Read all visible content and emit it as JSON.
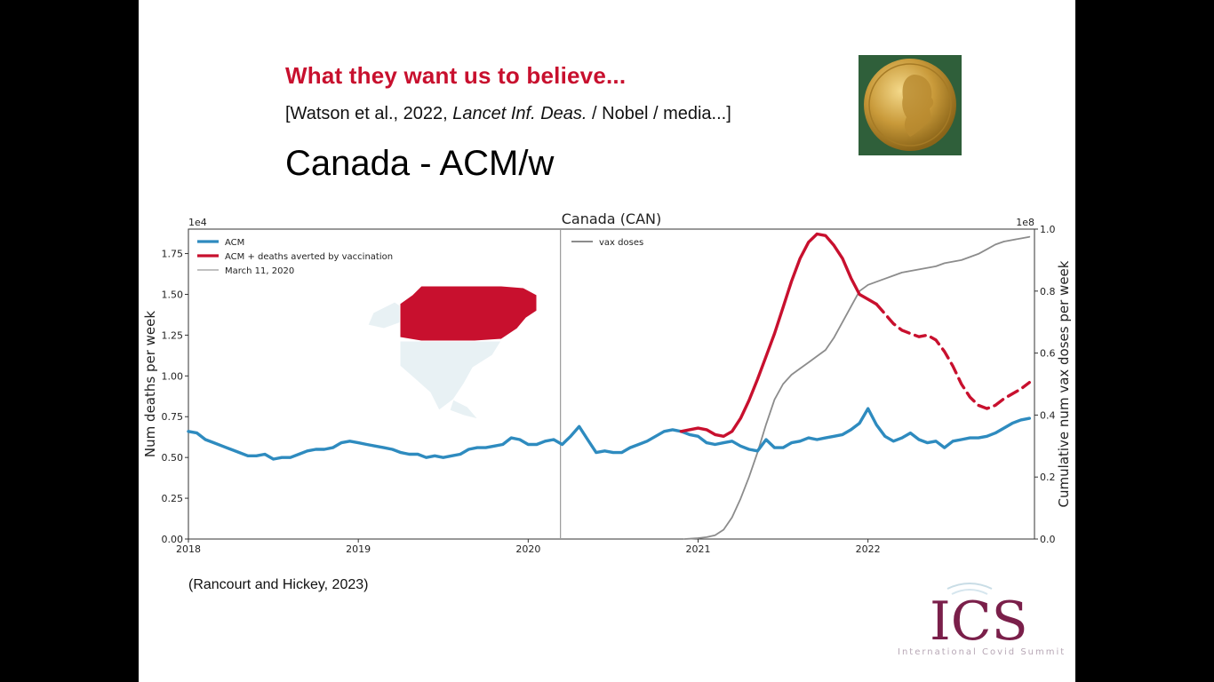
{
  "slide": {
    "headline": "What they want us to believe...",
    "citation_prefix": "[Watson et al., 2022, ",
    "citation_journal": "Lancet Inf. Deas.",
    "citation_suffix": " / Nobel / media...]",
    "big_title": "Canada  -  ACM/w",
    "source": "(Rancourt and Hickey, 2023)",
    "logo_text": "ICS",
    "logo_subtitle": "International Covid Summit"
  },
  "colors": {
    "acm": "#2e8bbf",
    "averted": "#c8102e",
    "vax": "#8c8c8c",
    "marker": "#9a9a9a",
    "logo": "#7a1f4a"
  },
  "chart_data": {
    "type": "line",
    "title": "Canada (CAN)",
    "ylabel": "Num deaths per week",
    "y2label": "Cumulative num vax doses per week",
    "y_scale_label": "1e4",
    "y2_scale_label": "1e8",
    "xlim": [
      2018.0,
      2022.98
    ],
    "ylim": [
      0,
      1.9
    ],
    "y2lim": [
      0,
      1.0
    ],
    "x_ticks": [
      {
        "value": 2018,
        "label": "2018"
      },
      {
        "value": 2019,
        "label": "2019"
      },
      {
        "value": 2020,
        "label": "2020"
      },
      {
        "value": 2021,
        "label": "2021"
      },
      {
        "value": 2022,
        "label": "2022"
      }
    ],
    "y_ticks": [
      {
        "value": 0.0,
        "label": "0.00"
      },
      {
        "value": 0.25,
        "label": "0.25"
      },
      {
        "value": 0.5,
        "label": "0.50"
      },
      {
        "value": 0.75,
        "label": "0.75"
      },
      {
        "value": 1.0,
        "label": "1.00"
      },
      {
        "value": 1.25,
        "label": "1.25"
      },
      {
        "value": 1.5,
        "label": "1.50"
      },
      {
        "value": 1.75,
        "label": "1.75"
      }
    ],
    "y2_ticks": [
      {
        "value": 0.0,
        "label": "0.0"
      },
      {
        "value": 0.2,
        "label": "0.2"
      },
      {
        "value": 0.4,
        "label": "0.4"
      },
      {
        "value": 0.6,
        "label": "0.6"
      },
      {
        "value": 0.8,
        "label": "0.8"
      },
      {
        "value": 1.0,
        "label": "1.0"
      }
    ],
    "legend_left": [
      {
        "label": "ACM",
        "color": "#2e8bbf",
        "style": "thick"
      },
      {
        "label": "ACM + deaths averted by vaccination",
        "color": "#c8102e",
        "style": "thick"
      },
      {
        "label": "March 11, 2020",
        "color": "#9a9a9a",
        "style": "thin"
      }
    ],
    "legend_right": [
      {
        "label": "vax doses",
        "color": "#8c8c8c",
        "style": "thin"
      }
    ],
    "marker_x": 2020.19,
    "series": [
      {
        "name": "ACM",
        "axis": "left",
        "x": [
          2018.0,
          2018.05,
          2018.1,
          2018.15,
          2018.2,
          2018.25,
          2018.3,
          2018.35,
          2018.4,
          2018.45,
          2018.5,
          2018.55,
          2018.6,
          2018.65,
          2018.7,
          2018.75,
          2018.8,
          2018.85,
          2018.9,
          2018.95,
          2019.0,
          2019.05,
          2019.1,
          2019.15,
          2019.2,
          2019.25,
          2019.3,
          2019.35,
          2019.4,
          2019.45,
          2019.5,
          2019.55,
          2019.6,
          2019.65,
          2019.7,
          2019.75,
          2019.8,
          2019.85,
          2019.9,
          2019.95,
          2020.0,
          2020.05,
          2020.1,
          2020.15,
          2020.2,
          2020.25,
          2020.3,
          2020.35,
          2020.4,
          2020.45,
          2020.5,
          2020.55,
          2020.6,
          2020.65,
          2020.7,
          2020.75,
          2020.8,
          2020.85,
          2020.9,
          2020.95,
          2021.0,
          2021.05,
          2021.1,
          2021.15,
          2021.2,
          2021.25,
          2021.3,
          2021.35,
          2021.4,
          2021.45,
          2021.5,
          2021.55,
          2021.6,
          2021.65,
          2021.7,
          2021.75,
          2021.8,
          2021.85,
          2021.9,
          2021.95,
          2022.0,
          2022.05,
          2022.1,
          2022.15,
          2022.2,
          2022.25,
          2022.3,
          2022.35,
          2022.4,
          2022.45,
          2022.5,
          2022.55,
          2022.6,
          2022.65,
          2022.7,
          2022.75,
          2022.8,
          2022.85,
          2022.9,
          2022.95
        ],
        "values": [
          0.66,
          0.65,
          0.61,
          0.59,
          0.57,
          0.55,
          0.53,
          0.51,
          0.51,
          0.52,
          0.49,
          0.5,
          0.5,
          0.52,
          0.54,
          0.55,
          0.55,
          0.56,
          0.59,
          0.6,
          0.59,
          0.58,
          0.57,
          0.56,
          0.55,
          0.53,
          0.52,
          0.52,
          0.5,
          0.51,
          0.5,
          0.51,
          0.52,
          0.55,
          0.56,
          0.56,
          0.57,
          0.58,
          0.62,
          0.61,
          0.58,
          0.58,
          0.6,
          0.61,
          0.58,
          0.63,
          0.69,
          0.61,
          0.53,
          0.54,
          0.53,
          0.53,
          0.56,
          0.58,
          0.6,
          0.63,
          0.66,
          0.67,
          0.66,
          0.64,
          0.63,
          0.59,
          0.58,
          0.59,
          0.6,
          0.57,
          0.55,
          0.54,
          0.61,
          0.56,
          0.56,
          0.59,
          0.6,
          0.62,
          0.61,
          0.62,
          0.63,
          0.64,
          0.67,
          0.71,
          0.8,
          0.7,
          0.63,
          0.6,
          0.62,
          0.65,
          0.61,
          0.59,
          0.6,
          0.56,
          0.6,
          0.61,
          0.62,
          0.62,
          0.63,
          0.65,
          0.68,
          0.71,
          0.73,
          0.74
        ]
      },
      {
        "name": "ACM + deaths averted by vaccination",
        "axis": "left",
        "x": [
          2020.9,
          2020.95,
          2021.0,
          2021.05,
          2021.1,
          2021.15,
          2021.2,
          2021.25,
          2021.3,
          2021.35,
          2021.4,
          2021.45,
          2021.5,
          2021.55,
          2021.6,
          2021.65,
          2021.7,
          2021.75,
          2021.8,
          2021.85,
          2021.9,
          2021.95,
          2022.0,
          2022.05
        ],
        "values": [
          0.66,
          0.67,
          0.68,
          0.67,
          0.64,
          0.63,
          0.66,
          0.74,
          0.85,
          0.98,
          1.12,
          1.26,
          1.42,
          1.58,
          1.72,
          1.82,
          1.87,
          1.86,
          1.8,
          1.72,
          1.6,
          1.5,
          1.47,
          1.44
        ]
      },
      {
        "name": "ACM + deaths averted by vaccination (dashed)",
        "axis": "left",
        "x": [
          2022.05,
          2022.1,
          2022.15,
          2022.2,
          2022.25,
          2022.3,
          2022.35,
          2022.4,
          2022.45,
          2022.5,
          2022.55,
          2022.6,
          2022.65,
          2022.7,
          2022.75,
          2022.8,
          2022.85,
          2022.9,
          2022.95
        ],
        "values": [
          1.44,
          1.38,
          1.32,
          1.28,
          1.26,
          1.24,
          1.25,
          1.22,
          1.15,
          1.06,
          0.95,
          0.87,
          0.82,
          0.8,
          0.82,
          0.86,
          0.89,
          0.92,
          0.96
        ]
      },
      {
        "name": "vax doses",
        "axis": "right",
        "x": [
          2020.92,
          2020.95,
          2021.0,
          2021.05,
          2021.1,
          2021.15,
          2021.2,
          2021.25,
          2021.3,
          2021.35,
          2021.4,
          2021.45,
          2021.5,
          2021.55,
          2021.6,
          2021.65,
          2021.7,
          2021.75,
          2021.8,
          2021.85,
          2021.9,
          2021.95,
          2022.0,
          2022.05,
          2022.1,
          2022.15,
          2022.2,
          2022.25,
          2022.3,
          2022.35,
          2022.4,
          2022.45,
          2022.5,
          2022.55,
          2022.6,
          2022.65,
          2022.7,
          2022.75,
          2022.8,
          2022.85,
          2022.9,
          2022.95
        ],
        "values": [
          0.0,
          0.001,
          0.003,
          0.006,
          0.012,
          0.03,
          0.07,
          0.13,
          0.2,
          0.28,
          0.37,
          0.45,
          0.5,
          0.53,
          0.55,
          0.57,
          0.59,
          0.61,
          0.65,
          0.7,
          0.75,
          0.8,
          0.82,
          0.83,
          0.84,
          0.85,
          0.86,
          0.865,
          0.87,
          0.875,
          0.88,
          0.89,
          0.895,
          0.9,
          0.91,
          0.92,
          0.935,
          0.95,
          0.96,
          0.965,
          0.97,
          0.975
        ]
      }
    ]
  }
}
